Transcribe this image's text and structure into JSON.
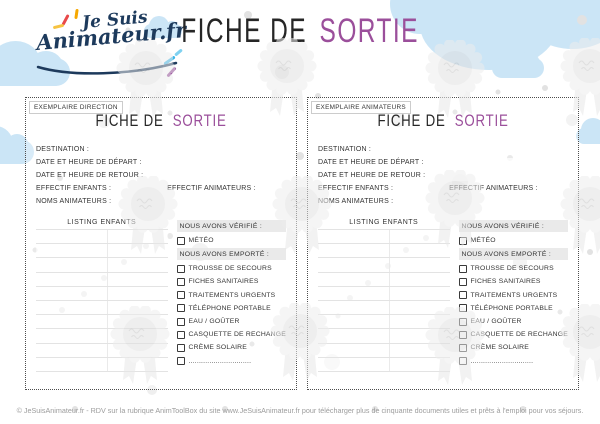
{
  "colors": {
    "accent": "#9b4f9b",
    "navy": "#1d3a5c",
    "cloud": "#cbe5f6",
    "dot": "#e2e2e2"
  },
  "header": {
    "logo": {
      "line1": "Je Suis",
      "line2": "Animateur.fr"
    },
    "title": {
      "black": "FICHE DE",
      "accent": "SORTIE"
    }
  },
  "forms": [
    {
      "copy_label": "EXEMPLAIRE DIRECTION",
      "title": {
        "black": "FICHE DE",
        "accent": "SORTIE"
      },
      "fields": {
        "destination": "DESTINATION :",
        "depart": "DATE ET HEURE DE DÉPART :",
        "retour": "DATE ET HEURE DE RETOUR :",
        "effectif_enfants": "EFFECTIF ENFANTS :",
        "effectif_animateurs": "EFFECTIF ANIMATEURS :",
        "noms_animateurs": "NOMS ANIMATEURS :"
      },
      "listing": {
        "header": "LISTING ENFANTS",
        "row_count": 10
      },
      "checklist": {
        "verifie_header": "NOUS AVONS VÉRIFIÉ :",
        "verifie_items": [
          "MÉTÉO"
        ],
        "emporte_header": "NOUS AVONS EMPORTÉ :",
        "emporte_items": [
          "TROUSSE DE SECOURS",
          "FICHES SANITAIRES",
          "TRAITEMENTS URGENTS",
          "TÉLÉPHONE PORTABLE",
          "EAU / GOÛTER",
          "CASQUETTE DE RECHANGE",
          "CRÈME SOLAIRE",
          ".............................."
        ]
      }
    },
    {
      "copy_label": "EXEMPLAIRE ANIMATEURS",
      "title": {
        "black": "FICHE DE",
        "accent": "SORTIE"
      },
      "fields": {
        "destination": "DESTINATION :",
        "depart": "DATE ET HEURE DE DÉPART :",
        "retour": "DATE ET HEURE DE RETOUR :",
        "effectif_enfants": "EFFECTIF ENFANTS :",
        "effectif_animateurs": "EFFECTIF ANIMATEURS :",
        "noms_animateurs": "NOMS ANIMATEURS :"
      },
      "listing": {
        "header": "LISTING ENFANTS",
        "row_count": 10
      },
      "checklist": {
        "verifie_header": "NOUS AVONS VÉRIFIÉ :",
        "verifie_items": [
          "MÉTÉO"
        ],
        "emporte_header": "NOUS AVONS EMPORTÉ :",
        "emporte_items": [
          "TROUSSE DE SECOURS",
          "FICHES SANITAIRES",
          "TRAITEMENTS URGENTS",
          "TÉLÉPHONE PORTABLE",
          "EAU / GOÛTER",
          "CASQUETTE DE RECHANGE",
          "CRÈME SOLAIRE",
          ".............................."
        ]
      }
    }
  ],
  "footer": {
    "text": "© JeSuisAnimateur.fr - RDV sur la rubrique AnimToolBox du site www.JeSuisAnimateur.fr pour télécharger plus de cinquante documents utiles et prêts à l'emploi pour vos séjours."
  }
}
